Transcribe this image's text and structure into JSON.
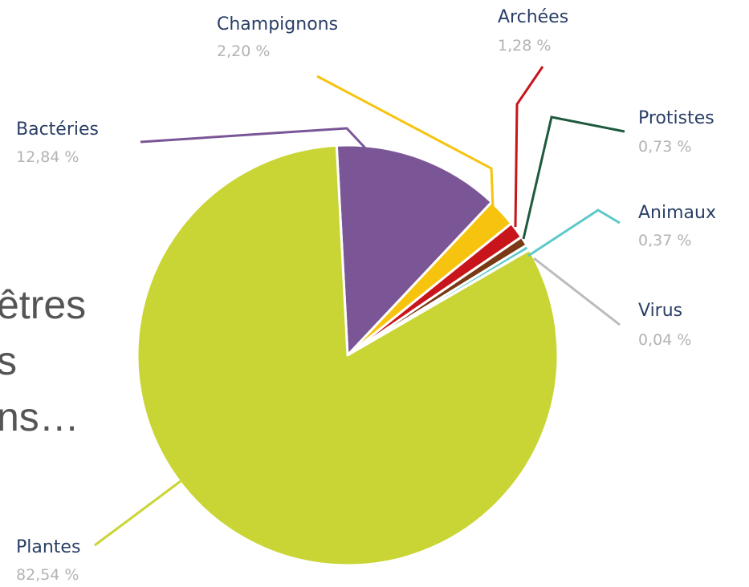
{
  "background_text": [
    "êtres",
    "s",
    "ns…"
  ],
  "chart_data": {
    "type": "pie",
    "title": "",
    "slices": [
      {
        "label": "Bactéries",
        "value_label": "12,84 %",
        "value": 12.84,
        "color": "#7a5697"
      },
      {
        "label": "Champignons",
        "value_label": "2,20 %",
        "value": 2.2,
        "color": "#f6c40f"
      },
      {
        "label": "Archées",
        "value_label": "1,28 %",
        "value": 1.28,
        "color": "#c8151b"
      },
      {
        "label": "Protistes",
        "value_label": "0,73 %",
        "value": 0.73,
        "color": "#7b3a16"
      },
      {
        "label": "Animaux",
        "value_label": "0,37 %",
        "value": 0.37,
        "color": "#5ec9c9"
      },
      {
        "label": "Virus",
        "value_label": "0,04 %",
        "value": 0.04,
        "color": "#bbbbbb"
      },
      {
        "label": "Plantes",
        "value_label": "82,54 %",
        "value": 82.54,
        "color": "#c9d535"
      }
    ],
    "leader_colors": {
      "Bactéries": "#7a5697",
      "Champignons": "#f6c40f",
      "Archées": "#c8151b",
      "Protistes": "#1e5a3e",
      "Animaux": "#5ec9c9",
      "Virus": "#bbbbbb",
      "Plantes": "#c9d535"
    }
  }
}
